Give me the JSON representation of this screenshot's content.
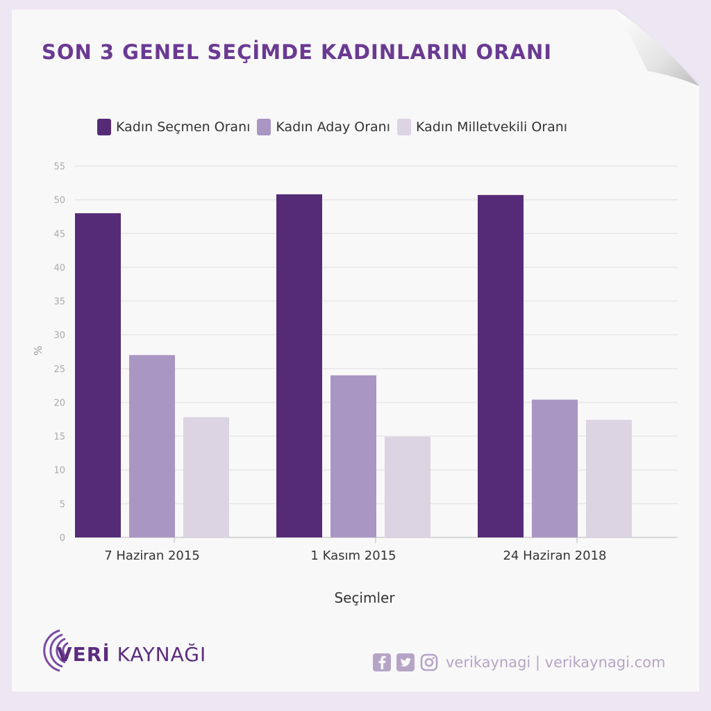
{
  "page": {
    "title": "SON 3 GENEL SEÇİMDE KADINLARIN ORANI",
    "brand_part1": "VERİ",
    "brand_part2": " KAYNAĞI",
    "social_text": "verikaynagi | verikaynagi.com",
    "icons": [
      "facebook-icon",
      "twitter-icon",
      "instagram-icon",
      "veri-kaynagi-logo-icon"
    ]
  },
  "colors": {
    "title": "#6a3a92",
    "series": [
      "#552b78",
      "#a996c3",
      "#dcd3e3"
    ]
  },
  "chart_data": {
    "type": "bar",
    "title": "SON 3 GENEL SEÇİMDE KADINLARIN ORANI",
    "xlabel": "Seçimler",
    "ylabel": "%",
    "ylim": [
      0,
      55
    ],
    "yticks": [
      0,
      5,
      10,
      15,
      20,
      25,
      30,
      35,
      40,
      45,
      50,
      55
    ],
    "grid": true,
    "legend_position": "top",
    "categories": [
      "7 Haziran 2015",
      "1 Kasım 2015",
      "24 Haziran 2018"
    ],
    "series": [
      {
        "name": "Kadın Seçmen Oranı",
        "values": [
          48.0,
          50.8,
          50.7
        ]
      },
      {
        "name": "Kadın Aday Oranı",
        "values": [
          27.0,
          24.0,
          20.4
        ]
      },
      {
        "name": "Kadın Milletvekili Oranı",
        "values": [
          17.8,
          14.9,
          17.4
        ]
      }
    ]
  }
}
